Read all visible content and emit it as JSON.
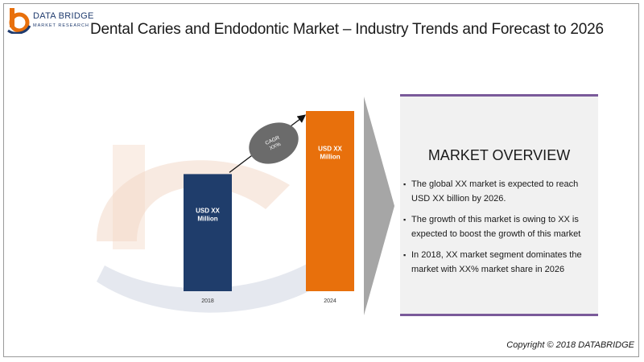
{
  "logo": {
    "name": "DATA BRIDGE",
    "tagline": "MARKET RESEARCH",
    "icon": "databridge-logo-icon"
  },
  "title": "Dental Caries and Endodontic Market – Industry Trends and Forecast to 2026",
  "chart_data": {
    "type": "bar",
    "categories": [
      "2018",
      "2024"
    ],
    "values": [
      0.65,
      1.0
    ],
    "data_labels": [
      [
        "USD XX",
        "Million"
      ],
      [
        "USD XX",
        "Million"
      ]
    ],
    "colors": [
      "#1f3d6b",
      "#e8700c"
    ],
    "annotation": {
      "lines": [
        "CAGR",
        "XX%"
      ],
      "color": "#6b6b6b"
    },
    "title": "",
    "xlabel": "",
    "ylabel": "",
    "grid": false,
    "legend": "none"
  },
  "overview": {
    "title": "MARKET OVERVIEW",
    "bullets": [
      "The global XX market is expected to reach USD XX billion by 2026.",
      "The growth of this market is owing to XX is expected to boost the growth of this market",
      "In 2018, XX market segment dominates the market with XX% market share in 2026"
    ],
    "bullet_glyph": "▪",
    "accent_color": "#7a5a9a"
  },
  "copyright": "Copyright © 2018 DATABRIDGE"
}
